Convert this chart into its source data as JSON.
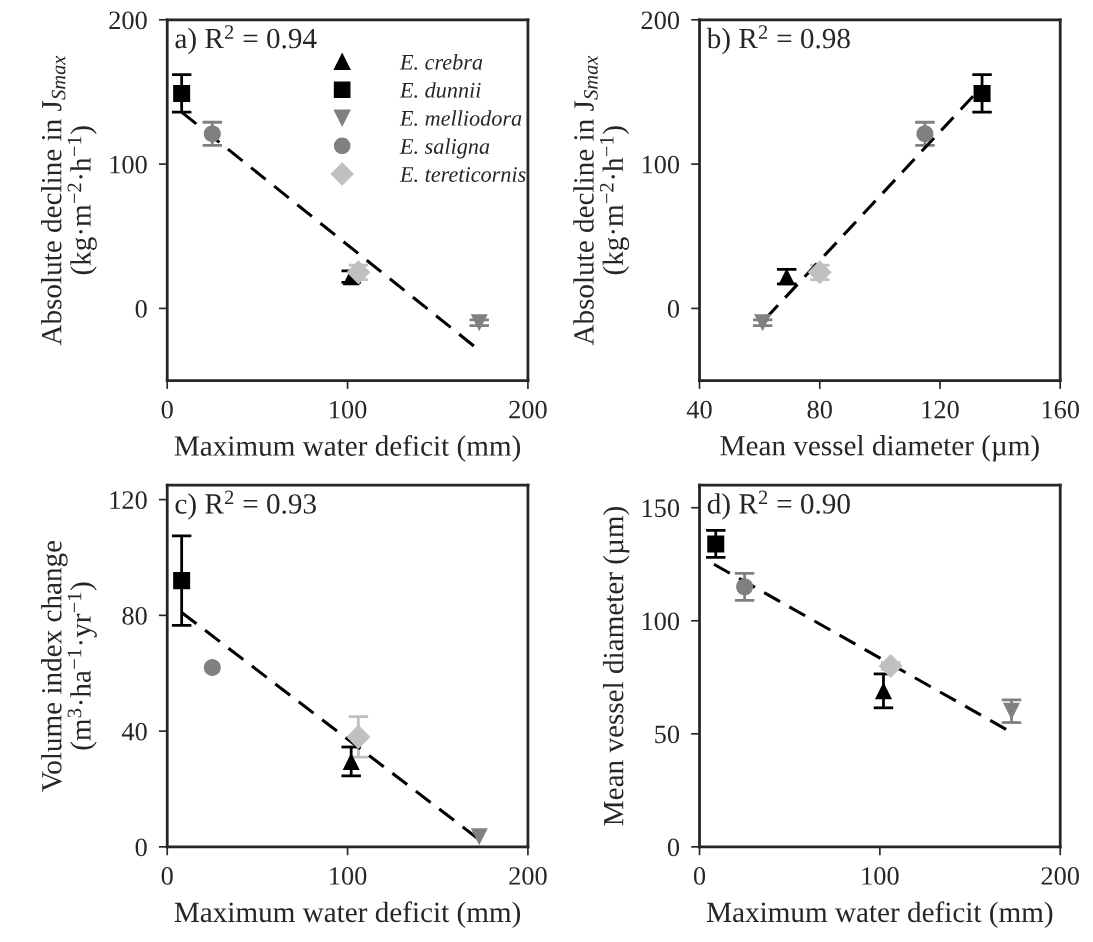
{
  "chart_data": [
    {
      "type": "scatter",
      "annotations": [
        "a) R$^{2}$ = 0.94"
      ],
      "xlabel": "Maximum water deficit (mm)",
      "ylabel": "Absolute decline in J$_{Smax}$\n(kg·m$^{−2}$·h$^{−1}$)",
      "xlim": [
        0,
        200
      ],
      "xticks": [
        0,
        100,
        200
      ],
      "ylim": [
        -50,
        200
      ],
      "yticks": [
        0,
        100,
        200
      ],
      "grid": false,
      "legend": "top right",
      "series": [
        {
          "name": "E. crebra",
          "color": "#000000",
          "marker": "triangle",
          "x": [
            102
          ],
          "values": [
            22
          ],
          "errors": [
            4
          ]
        },
        {
          "name": "E. dunnii",
          "color": "#000000",
          "marker": "square",
          "x": [
            8
          ],
          "values": [
            149
          ],
          "errors": [
            13
          ]
        },
        {
          "name": "E. melliodora",
          "color": "#808080",
          "marker": "triangle_down",
          "x": [
            173
          ],
          "values": [
            -10
          ],
          "errors": [
            2
          ]
        },
        {
          "name": "E. saligna",
          "color": "#808080",
          "marker": "circle",
          "x": [
            25
          ],
          "values": [
            121
          ],
          "errors": [
            8
          ]
        },
        {
          "name": "E. tereticornis",
          "color": "#c0c0c0",
          "marker": "diamond",
          "x": [
            106
          ],
          "values": [
            25
          ],
          "errors": [
            5
          ]
        },
        {
          "type": "line",
          "color": "#000000",
          "marker": "none",
          "line_style": "dashed",
          "x": [
            8,
            170
          ],
          "values": [
            136,
            -26
          ]
        }
      ]
    },
    {
      "type": "scatter",
      "annotations": [
        "b) R$^{2}$ = 0.98"
      ],
      "xlabel": "Mean vessel diameter (µm)",
      "ylabel": "Absolute decline in J$_{Smax}$\n(kg·m$^{−2}$·h$^{−1}$)",
      "xlim": [
        40,
        160
      ],
      "xticks": [
        40,
        80,
        120,
        160
      ],
      "ylim": [
        -50,
        200
      ],
      "yticks": [
        0,
        100,
        200
      ],
      "grid": false,
      "series": [
        {
          "color": "#000000",
          "marker": "triangle",
          "x": [
            69
          ],
          "values": [
            22
          ],
          "errors": [
            5
          ]
        },
        {
          "color": "#000000",
          "marker": "square",
          "x": [
            134
          ],
          "values": [
            149
          ],
          "errors": [
            13
          ]
        },
        {
          "color": "#808080",
          "marker": "triangle_down",
          "x": [
            61
          ],
          "values": [
            -10
          ],
          "errors": [
            2
          ]
        },
        {
          "color": "#808080",
          "marker": "circle",
          "x": [
            115
          ],
          "values": [
            121
          ],
          "errors": [
            8
          ]
        },
        {
          "color": "#c0c0c0",
          "marker": "diamond",
          "x": [
            80
          ],
          "values": [
            25
          ],
          "errors": [
            5
          ]
        },
        {
          "type": "line",
          "color": "#000000",
          "marker": "none",
          "line_style": "dashed",
          "x": [
            62,
            131
          ],
          "values": [
            -7,
            147
          ]
        }
      ]
    },
    {
      "type": "scatter",
      "annotations": [
        "c) R$^{2}$ = 0.93"
      ],
      "xlabel": "Maximum water deficit (mm)",
      "ylabel": "Volume index change\n(m$^{3}$·ha$^{−1}$·yr$^{−1}$)",
      "xlim": [
        0,
        200
      ],
      "xticks": [
        0,
        100,
        200
      ],
      "ylim": [
        0,
        125
      ],
      "yticks": [
        0,
        40,
        80,
        120
      ],
      "grid": false,
      "series": [
        {
          "color": "#000000",
          "marker": "triangle",
          "x": [
            102
          ],
          "values": [
            29.5
          ],
          "errors": [
            5
          ]
        },
        {
          "color": "#000000",
          "marker": "square",
          "x": [
            8
          ],
          "values": [
            92
          ],
          "errors": [
            15.5
          ]
        },
        {
          "color": "#808080",
          "marker": "triangle_down",
          "x": [
            173
          ],
          "values": [
            3.5
          ],
          "errors": [
            null
          ]
        },
        {
          "color": "#808080",
          "marker": "circle",
          "x": [
            25
          ],
          "values": [
            62
          ],
          "errors": [
            null
          ]
        },
        {
          "color": "#c0c0c0",
          "marker": "diamond",
          "x": [
            106
          ],
          "values": [
            38
          ],
          "errors": [
            7
          ]
        },
        {
          "type": "line",
          "color": "#000000",
          "marker": "none",
          "line_style": "dashed",
          "x": [
            8,
            172
          ],
          "values": [
            81,
            3
          ]
        }
      ]
    },
    {
      "type": "scatter",
      "annotations": [
        "d) R$^{2}$ = 0.90"
      ],
      "xlabel": "Maximum water deficit (mm)",
      "ylabel": "Mean vessel diameter (µm)",
      "xlim": [
        0,
        200
      ],
      "xticks": [
        0,
        100,
        200
      ],
      "ylim": [
        0,
        160
      ],
      "yticks": [
        0,
        50,
        100,
        150
      ],
      "grid": false,
      "series": [
        {
          "color": "#000000",
          "marker": "triangle",
          "x": [
            102
          ],
          "values": [
            69
          ],
          "errors": [
            7.5
          ]
        },
        {
          "color": "#000000",
          "marker": "square",
          "x": [
            9
          ],
          "values": [
            134
          ],
          "errors": [
            6
          ]
        },
        {
          "color": "#808080",
          "marker": "triangle_down",
          "x": [
            173
          ],
          "values": [
            60
          ],
          "errors": [
            5
          ]
        },
        {
          "color": "#808080",
          "marker": "circle",
          "x": [
            25
          ],
          "values": [
            115
          ],
          "errors": [
            6
          ]
        },
        {
          "color": "#c0c0c0",
          "marker": "diamond",
          "x": [
            106
          ],
          "values": [
            80
          ],
          "errors": [
            1.5
          ]
        },
        {
          "type": "line",
          "color": "#000000",
          "marker": "none",
          "line_style": "dashed",
          "x": [
            8,
            170
          ],
          "values": [
            125,
            52
          ]
        }
      ]
    }
  ]
}
